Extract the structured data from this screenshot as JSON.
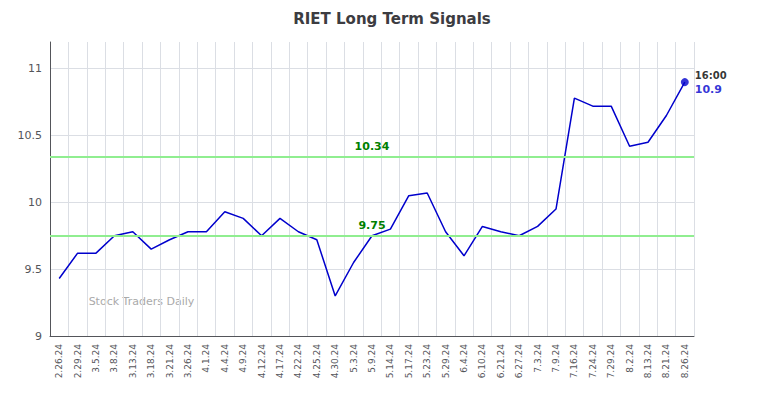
{
  "chart_data": {
    "type": "line",
    "title": "RIET Long Term Signals",
    "categories": [
      "2.26.24",
      "2.29.24",
      "3.5.24",
      "3.8.24",
      "3.13.24",
      "3.18.24",
      "3.21.24",
      "3.26.24",
      "4.1.24",
      "4.4.24",
      "4.9.24",
      "4.12.24",
      "4.17.24",
      "4.22.24",
      "4.25.24",
      "4.30.24",
      "5.3.24",
      "5.9.24",
      "5.14.24",
      "5.17.24",
      "5.23.24",
      "5.29.24",
      "6.4.24",
      "6.10.24",
      "6.21.24",
      "6.27.24",
      "7.3.24",
      "7.9.24",
      "7.16.24",
      "7.24.24",
      "7.29.24",
      "8.2.24",
      "8.13.24",
      "8.21.24",
      "8.26.24"
    ],
    "values": [
      9.43,
      9.62,
      9.62,
      9.75,
      9.78,
      9.65,
      9.72,
      9.78,
      9.78,
      9.93,
      9.88,
      9.75,
      9.88,
      9.78,
      9.72,
      9.3,
      9.55,
      9.75,
      9.8,
      10.05,
      10.07,
      9.78,
      9.6,
      9.82,
      9.78,
      9.75,
      9.82,
      9.95,
      10.78,
      10.72,
      10.72,
      10.42,
      10.45,
      10.65,
      10.9
    ],
    "color": "#0000CC",
    "ylim": [
      9.0,
      11.2
    ],
    "yticks": [
      9,
      9.5,
      10,
      10.5,
      11
    ],
    "grid": true,
    "reference_lines": [
      {
        "value": 10.34,
        "label": "10.34",
        "color": "#90EE90"
      },
      {
        "value": 9.75,
        "label": "9.75",
        "color": "#90EE90"
      }
    ],
    "annotations": [
      {
        "text": "16:00",
        "x": "8.26.24",
        "y": 10.9,
        "color": "#000000"
      },
      {
        "text": "10.9",
        "x": "8.26.24",
        "y": 10.9,
        "color": "#0000CC"
      }
    ],
    "watermark": "Stock Traders Daily"
  }
}
